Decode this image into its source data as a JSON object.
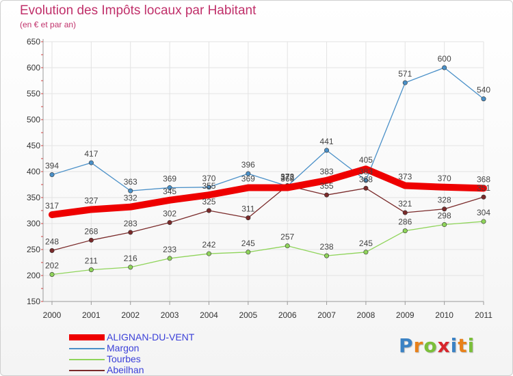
{
  "header": {
    "title": "Evolution des Impôts locaux par Habitant",
    "subtitle": "(en € et par an)"
  },
  "logo": {
    "text": "Proxiti",
    "letter_colors": [
      "#3b82c4",
      "#e8811a",
      "#7bbf3a",
      "#d8262c",
      "#3b82c4",
      "#e8811a",
      "#7bbf3a"
    ]
  },
  "chart_data": {
    "type": "line",
    "x": [
      "2000",
      "2001",
      "2002",
      "2003",
      "2004",
      "2005",
      "2006",
      "2007",
      "2008",
      "2009",
      "2010",
      "2011"
    ],
    "ylim": [
      150,
      650
    ],
    "yticks": [
      150,
      200,
      250,
      300,
      350,
      400,
      450,
      500,
      550,
      600,
      650
    ],
    "grid": true,
    "legend_position": "bottom-left",
    "series": [
      {
        "name": "Margon",
        "color": "#4a90c8",
        "values": [
          394,
          417,
          363,
          369,
          370,
          396,
          372,
          441,
          383,
          571,
          600,
          540
        ]
      },
      {
        "name": "Tourbes",
        "color": "#8fd45a",
        "values": [
          202,
          211,
          216,
          233,
          242,
          245,
          257,
          238,
          245,
          286,
          298,
          304
        ]
      },
      {
        "name": "Abeilhan",
        "color": "#7a2a2a",
        "values": [
          248,
          268,
          283,
          302,
          325,
          311,
          373,
          355,
          368,
          321,
          328,
          351
        ]
      },
      {
        "name": "ALIGNAN-DU-VENT",
        "color": "#ee0000",
        "values": [
          317,
          327,
          332,
          345,
          355,
          369,
          369,
          383,
          405,
          373,
          370,
          368
        ]
      }
    ],
    "legend_order": [
      "ALIGNAN-DU-VENT",
      "Margon",
      "Tourbes",
      "Abeilhan"
    ]
  }
}
